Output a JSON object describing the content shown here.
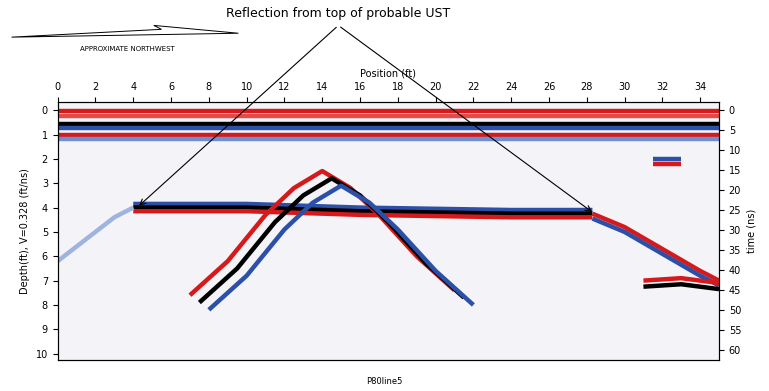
{
  "chart_data": {
    "type": "radargram",
    "title": "Reflection from top of probable UST",
    "subtitle": "APPROXIMATE NORTHWEST",
    "x_label": "Position (ft)",
    "y_label": "Depth(ft), V=0.328 (ft/ns)",
    "y2_label": "time (ns)",
    "footer": "P80line5",
    "xlim": [
      0,
      35.0
    ],
    "xticks": [
      0,
      2,
      4,
      6,
      8,
      10,
      12,
      14,
      16,
      18,
      20,
      22,
      24,
      26,
      28,
      30,
      32,
      34
    ],
    "ylim": [
      10.25,
      -0.35
    ],
    "yticks": [
      0,
      1,
      2,
      3,
      4,
      5,
      6,
      7,
      8,
      9,
      10
    ],
    "y2lim": [
      62.5,
      -2.1
    ],
    "y2ticks": [
      0,
      5,
      10,
      15,
      20,
      25,
      30,
      35,
      40,
      45,
      50,
      55,
      60
    ],
    "annotation_points": [
      [
        4.2,
        4.0
      ],
      [
        28.4,
        4.25
      ]
    ],
    "reflectors": [
      {
        "x": [
          0,
          35
        ],
        "depth": [
          0.05,
          0.05
        ],
        "color": "#d7191c"
      },
      {
        "x": [
          0,
          35
        ],
        "depth": [
          0.25,
          0.25
        ],
        "color": "#e34a4a"
      },
      {
        "x": [
          0,
          35
        ],
        "depth": [
          0.55,
          0.55
        ],
        "color": "#000000"
      },
      {
        "x": [
          0,
          35
        ],
        "depth": [
          0.75,
          0.75
        ],
        "color": "#2c4fa8"
      },
      {
        "x": [
          0,
          35
        ],
        "depth": [
          1.0,
          1.0
        ],
        "color": "#d7191c"
      },
      {
        "x": [
          0,
          35
        ],
        "depth": [
          1.2,
          1.2
        ],
        "color": "#6f8fd0"
      },
      {
        "x": [
          4,
          10,
          12,
          16,
          20,
          24,
          28.3
        ],
        "depth": [
          3.85,
          3.85,
          3.9,
          4.0,
          4.05,
          4.1,
          4.1
        ],
        "color": "#2c4fa8"
      },
      {
        "x": [
          4,
          10,
          12,
          16,
          20,
          24,
          28.3
        ],
        "depth": [
          4.0,
          4.0,
          4.05,
          4.15,
          4.2,
          4.25,
          4.25
        ],
        "color": "#000000"
      },
      {
        "x": [
          4,
          10,
          12,
          16,
          20,
          24,
          28.3
        ],
        "depth": [
          4.15,
          4.15,
          4.2,
          4.3,
          4.35,
          4.4,
          4.4
        ],
        "color": "#d7191c"
      },
      {
        "x": [
          28.3,
          30,
          32,
          34,
          35
        ],
        "depth": [
          4.25,
          4.8,
          5.7,
          6.6,
          7.0
        ],
        "color": "#d7191c"
      },
      {
        "x": [
          28.3,
          30,
          32,
          34,
          35
        ],
        "depth": [
          4.45,
          5.0,
          5.9,
          6.8,
          7.2
        ],
        "color": "#2c4fa8"
      },
      {
        "x": [
          7,
          9,
          11,
          12.5,
          14,
          15.5,
          17,
          19,
          21
        ],
        "depth": [
          7.6,
          6.2,
          4.3,
          3.2,
          2.5,
          3.2,
          4.3,
          6.0,
          7.4
        ],
        "color": "#d7191c"
      },
      {
        "x": [
          7.5,
          9.5,
          11.5,
          13,
          14.5,
          16,
          17.5,
          19.5,
          21.5
        ],
        "depth": [
          7.9,
          6.5,
          4.6,
          3.5,
          2.8,
          3.5,
          4.6,
          6.3,
          7.7
        ],
        "color": "#000000"
      },
      {
        "x": [
          8,
          10,
          12,
          13.5,
          15,
          16.5,
          18,
          20,
          22
        ],
        "depth": [
          8.2,
          6.8,
          4.9,
          3.8,
          3.1,
          3.8,
          4.9,
          6.6,
          8.0
        ],
        "color": "#2c4fa8"
      },
      {
        "x": [
          0,
          1,
          2,
          3,
          4
        ],
        "depth": [
          6.2,
          5.6,
          5.0,
          4.4,
          4.0
        ],
        "color": "#9fb3e0"
      },
      {
        "x": [
          31,
          33,
          35
        ],
        "depth": [
          7.0,
          6.9,
          7.1
        ],
        "color": "#d7191c"
      },
      {
        "x": [
          31,
          33,
          35
        ],
        "depth": [
          7.25,
          7.15,
          7.35
        ],
        "color": "#000000"
      },
      {
        "x": [
          31.5,
          33
        ],
        "depth": [
          2.0,
          2.0
        ],
        "color": "#2c4fa8"
      },
      {
        "x": [
          31.5,
          33
        ],
        "depth": [
          2.2,
          2.2
        ],
        "color": "#d7191c"
      }
    ]
  }
}
